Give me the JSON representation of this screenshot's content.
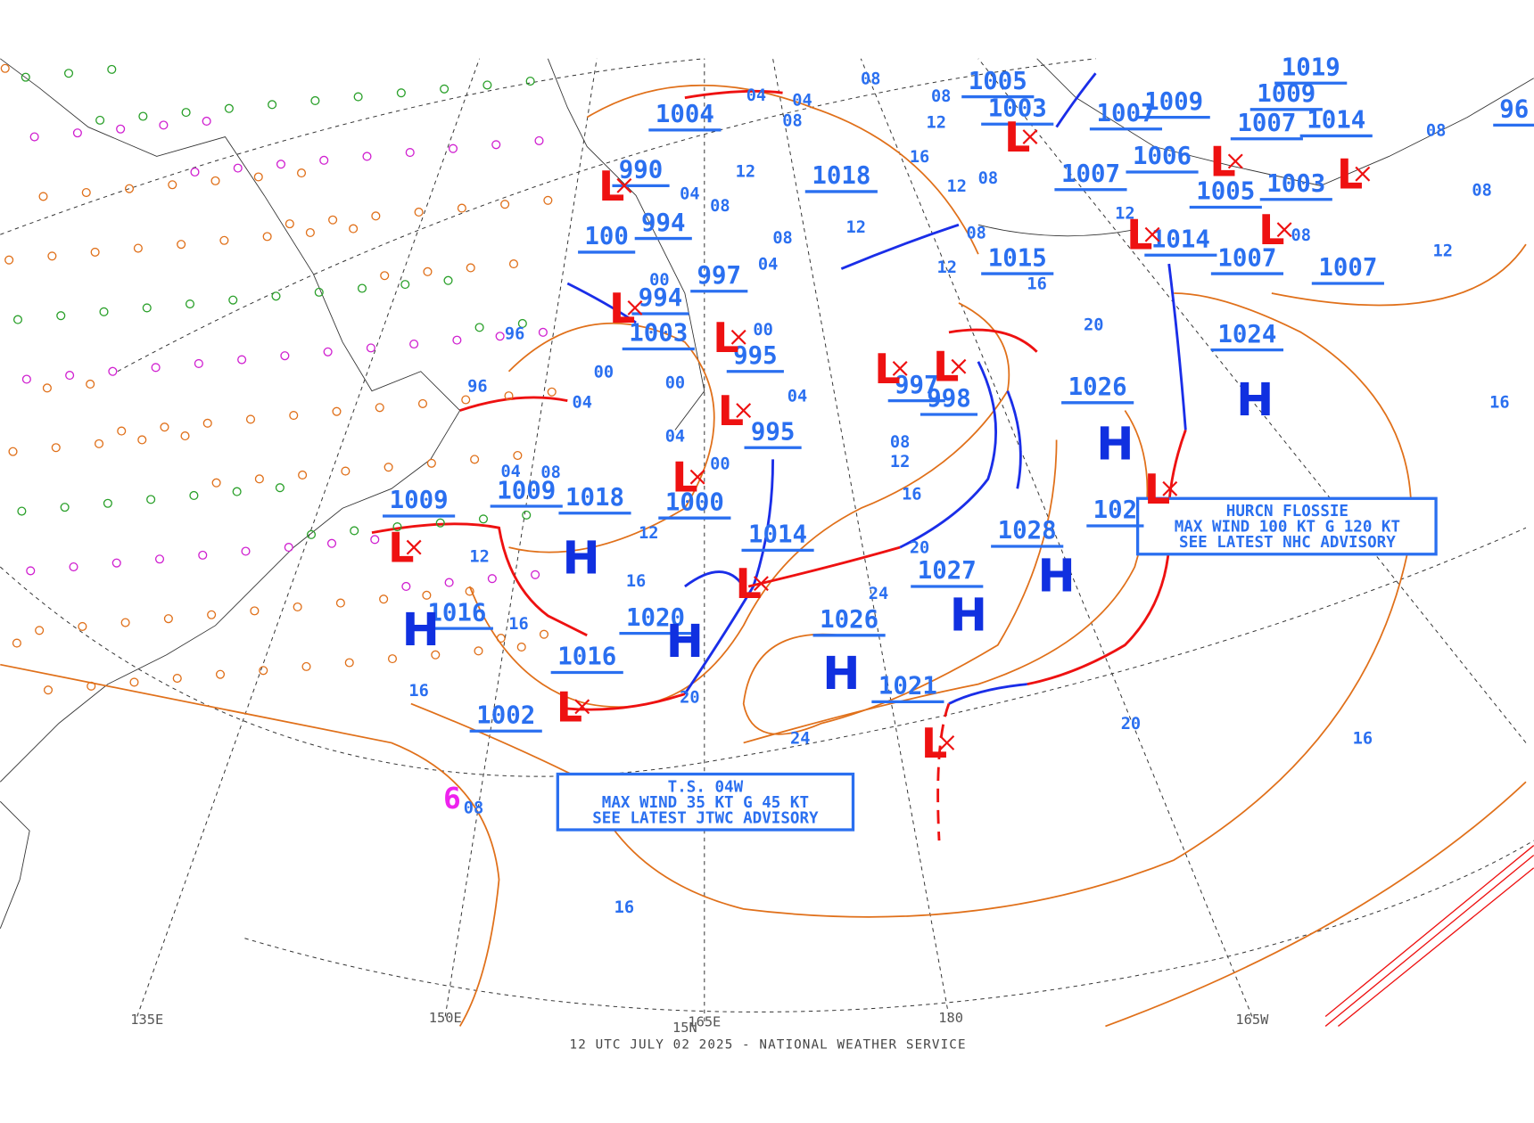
{
  "map": {
    "footer": "12 UTC JULY 02 2025 - NATIONAL WEATHER SERVICE",
    "longitudes": [
      "135E",
      "150E",
      "165E",
      "180",
      "165W"
    ],
    "latitude": "15N",
    "advisories": [
      {
        "lines": [
          "T.S. 04W",
          "MAX WIND 35 KT G 45 KT",
          "SEE LATEST JTWC ADVISORY"
        ]
      },
      {
        "lines": [
          "HURCN FLOSSIE",
          "MAX WIND 100 KT G 120 KT",
          "SEE LATEST NHC ADVISORY"
        ]
      }
    ],
    "pressure_labels": [
      "1004",
      "990",
      "994",
      "100",
      "997",
      "994",
      "1003",
      "995",
      "995",
      "1000",
      "1018",
      "1009",
      "1009",
      "1014",
      "1016",
      "1020",
      "1016",
      "1002",
      "1026",
      "1027",
      "1028",
      "1021",
      "1026",
      "1024",
      "1014",
      "1007",
      "1007",
      "1005",
      "1003",
      "1006",
      "1007",
      "1007",
      "1003",
      "1005",
      "1009",
      "1009",
      "1007",
      "1014",
      "1019",
      "1018",
      "1015",
      "997",
      "998",
      "102",
      "96"
    ],
    "high_symbol": "H",
    "low_symbol": "L",
    "isobar_labels": [
      "04",
      "04",
      "04",
      "04",
      "04",
      "04",
      "04",
      "04",
      "08",
      "08",
      "08",
      "08",
      "08",
      "08",
      "08",
      "08",
      "08",
      "08",
      "08",
      "08",
      "08",
      "12",
      "12",
      "12",
      "12",
      "12",
      "12",
      "12",
      "12",
      "12",
      "12",
      "16",
      "16",
      "16",
      "16",
      "16",
      "16",
      "16",
      "16",
      "16",
      "20",
      "20",
      "20",
      "20",
      "24",
      "24",
      "96",
      "96",
      "00",
      "00",
      "00",
      "00",
      "00"
    ],
    "storm_symbol": "6"
  }
}
